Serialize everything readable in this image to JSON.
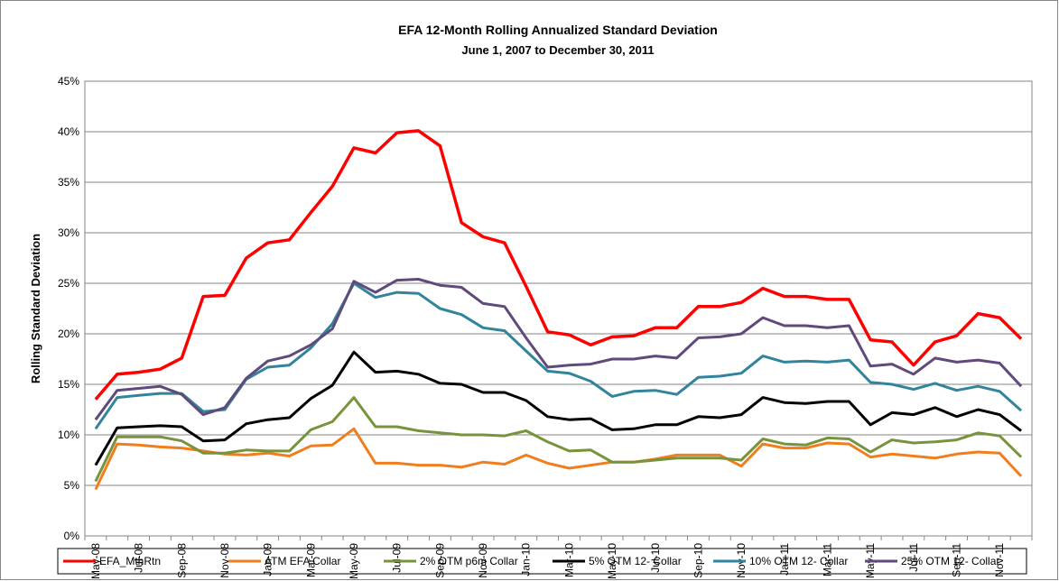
{
  "chart_data": {
    "type": "line",
    "title": "EFA 12-Month Rolling Annualized Standard Deviation",
    "subtitle": "June 1, 2007 to December 30, 2011",
    "y_label": "Rolling Standard Deviation",
    "categories": [
      "May-08",
      null,
      "Jul-08",
      null,
      "Sep-08",
      null,
      "Nov-08",
      null,
      "Jan-09",
      null,
      "Mar-09",
      null,
      "May-09",
      null,
      "Jul-09",
      null,
      "Sep-09",
      null,
      "Nov-09",
      null,
      "Jan-10",
      null,
      "Mar-10",
      null,
      "May-10",
      null,
      "Jul-10",
      null,
      "Sep-10",
      null,
      "Nov-10",
      null,
      "Jan-11",
      null,
      "Mar-11",
      null,
      "May-11",
      null,
      "Jul-11",
      null,
      "Sep-11",
      null,
      "Nov-11",
      null
    ],
    "ylim": [
      0,
      45
    ],
    "yticks": [
      {
        "value": 0,
        "label": "0%"
      },
      {
        "value": 5,
        "label": "5%"
      },
      {
        "value": 10,
        "label": "10%"
      },
      {
        "value": 15,
        "label": "15%"
      },
      {
        "value": 20,
        "label": "20%"
      },
      {
        "value": 25,
        "label": "25%"
      },
      {
        "value": 30,
        "label": "30%"
      },
      {
        "value": 35,
        "label": "35%"
      },
      {
        "value": 40,
        "label": "40%"
      },
      {
        "value": 45,
        "label": "45%"
      }
    ],
    "grid": true,
    "series": [
      {
        "name": "EFA_MthRtn",
        "color": "#ff0000",
        "values": [
          13.5,
          16,
          16.2,
          16.5,
          17.6,
          23.7,
          23.8,
          27.5,
          29,
          29.3,
          32,
          34.6,
          38.4,
          37.9,
          39.9,
          40.1,
          38.6,
          31,
          29.6,
          29,
          24.7,
          20.2,
          19.9,
          18.9,
          19.7,
          19.8,
          20.6,
          20.6,
          22.7,
          22.7,
          23.1,
          24.5,
          23.7,
          23.7,
          23.4,
          23.4,
          19.4,
          19.2,
          16.9,
          19.2,
          19.8,
          22,
          21.6,
          19.5
        ]
      },
      {
        "name": "ATM EFA Collar",
        "color": "#f07d1e",
        "values": [
          4.6,
          9.1,
          9.0,
          8.8,
          8.7,
          8.4,
          8.1,
          8.0,
          8.2,
          7.9,
          8.9,
          9.0,
          10.6,
          7.2,
          7.2,
          7.0,
          7.0,
          6.8,
          7.3,
          7.1,
          8.0,
          7.2,
          6.7,
          7.0,
          7.3,
          7.3,
          7.6,
          8.0,
          8.0,
          8.0,
          6.9,
          9.1,
          8.7,
          8.7,
          9.2,
          9.1,
          7.8,
          8.1,
          7.9,
          7.7,
          8.1,
          8.3,
          8.2,
          5.9
        ]
      },
      {
        "name": "2% OTM p6m Collar",
        "color": "#77933c",
        "values": [
          5.4,
          9.8,
          9.8,
          9.8,
          9.4,
          8.2,
          8.2,
          8.5,
          8.4,
          8.4,
          10.5,
          11.3,
          13.7,
          10.8,
          10.8,
          10.4,
          10.2,
          10.0,
          10.0,
          9.9,
          10.4,
          9.3,
          8.4,
          8.5,
          7.3,
          7.3,
          7.5,
          7.7,
          7.7,
          7.7,
          7.5,
          9.6,
          9.1,
          9.0,
          9.7,
          9.6,
          8.3,
          9.5,
          9.2,
          9.3,
          9.5,
          10.2,
          9.9,
          7.8
        ]
      },
      {
        "name": "5% OTM 12- Collar",
        "color": "#000000",
        "values": [
          7.0,
          10.7,
          10.8,
          10.9,
          10.8,
          9.4,
          9.5,
          11.1,
          11.5,
          11.7,
          13.6,
          14.9,
          18.2,
          16.2,
          16.3,
          16.0,
          15.1,
          15.0,
          14.2,
          14.2,
          13.4,
          11.8,
          11.5,
          11.6,
          10.5,
          10.6,
          11.0,
          11.0,
          11.8,
          11.7,
          12.0,
          13.7,
          13.2,
          13.1,
          13.3,
          13.3,
          11.0,
          12.2,
          12.0,
          12.7,
          11.8,
          12.5,
          12.0,
          10.4
        ]
      },
      {
        "name": "10% OTM 12- Collar",
        "color": "#31849b",
        "values": [
          10.6,
          13.7,
          13.9,
          14.1,
          14.1,
          12.3,
          12.5,
          15.5,
          16.7,
          16.9,
          18.6,
          21.0,
          25.0,
          23.6,
          24.1,
          24.0,
          22.5,
          21.9,
          20.6,
          20.3,
          18.3,
          16.3,
          16.1,
          15.3,
          13.8,
          14.3,
          14.4,
          14.0,
          15.7,
          15.8,
          16.1,
          17.8,
          17.2,
          17.3,
          17.2,
          17.4,
          15.2,
          15.0,
          14.5,
          15.1,
          14.4,
          14.8,
          14.3,
          12.4
        ]
      },
      {
        "name": "25% OTM 12- Collar",
        "color": "#604a7b",
        "values": [
          11.5,
          14.4,
          14.6,
          14.8,
          14.0,
          12.0,
          12.7,
          15.6,
          17.3,
          17.8,
          18.9,
          20.5,
          25.2,
          24.1,
          25.3,
          25.4,
          24.8,
          24.6,
          23.0,
          22.7,
          19.6,
          16.7,
          16.9,
          17.0,
          17.5,
          17.5,
          17.8,
          17.6,
          19.6,
          19.7,
          20.0,
          21.6,
          20.8,
          20.8,
          20.6,
          20.8,
          16.8,
          17.0,
          16.0,
          17.6,
          17.2,
          17.4,
          17.1,
          14.8
        ]
      }
    ]
  }
}
